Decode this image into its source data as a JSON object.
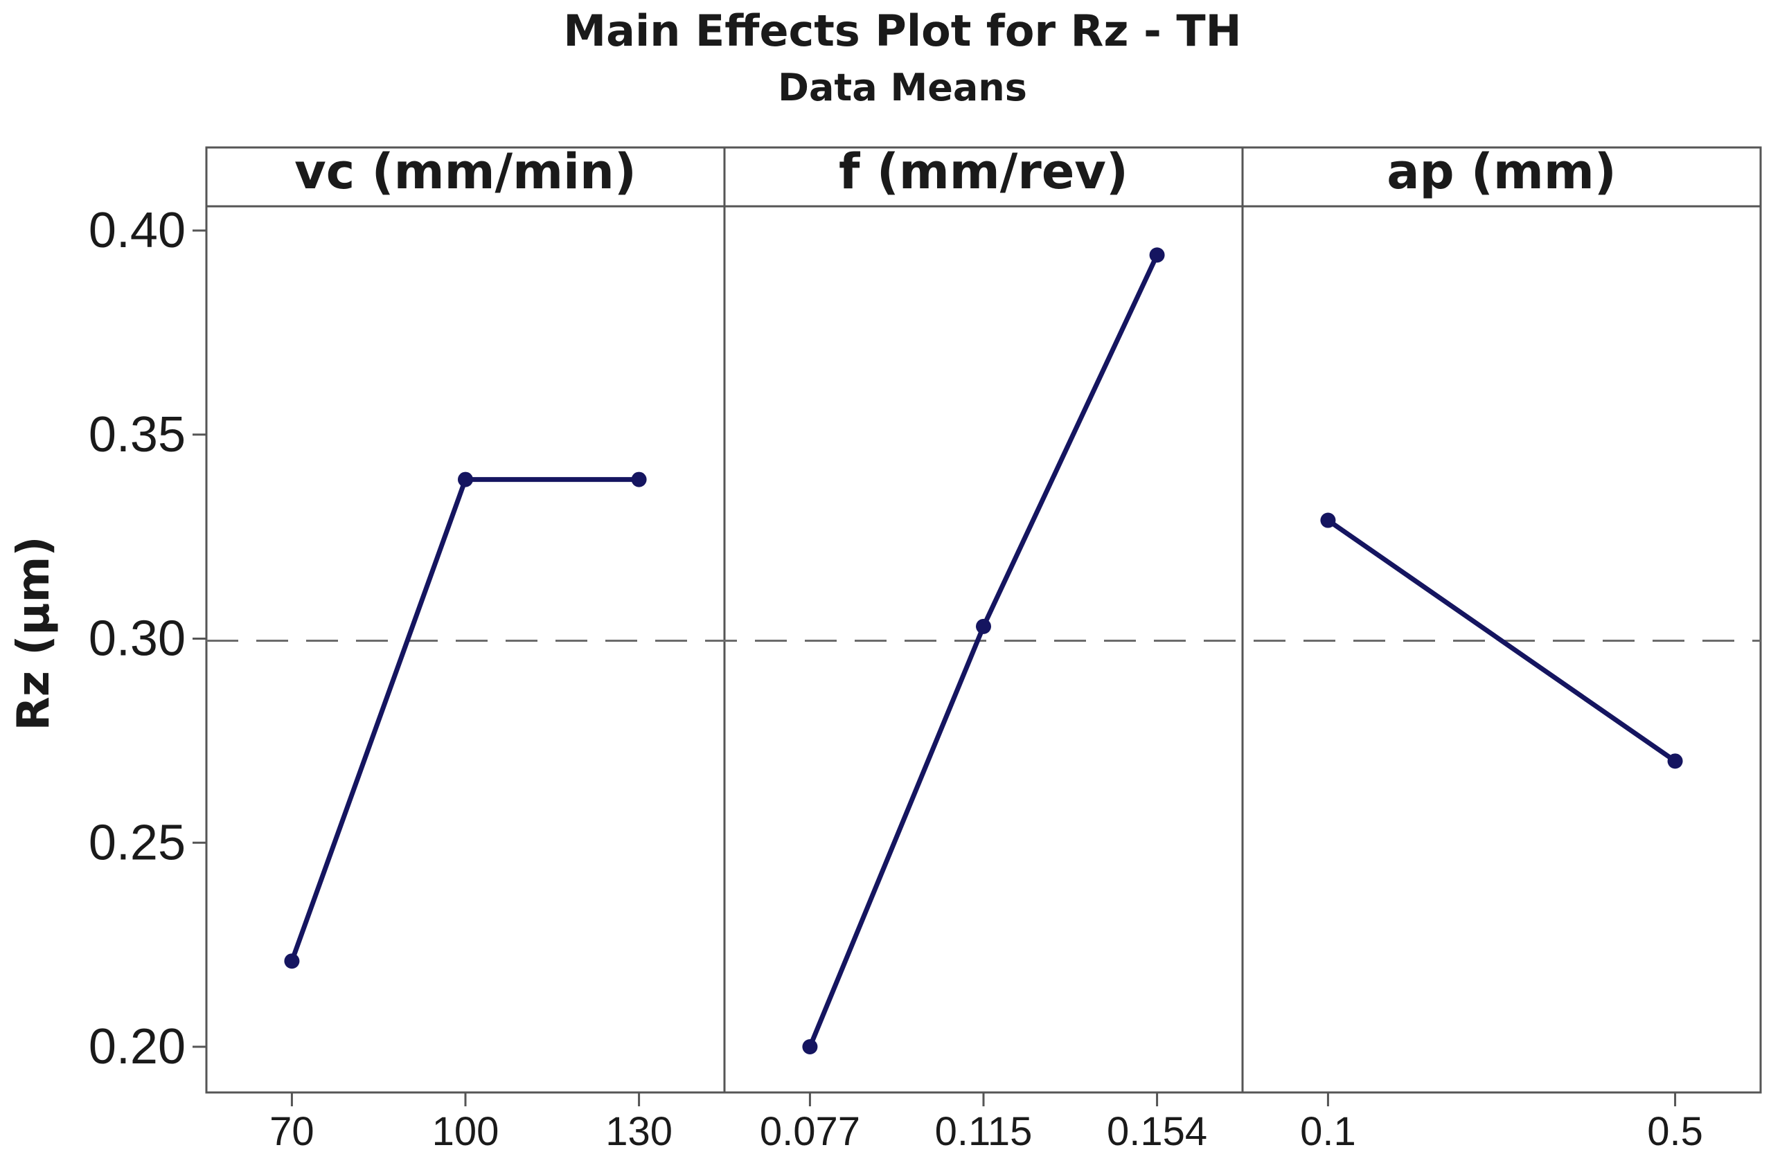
{
  "chart_data": {
    "type": "line",
    "title": "Main Effects Plot for Rz - TH",
    "subtitle": "Data Means",
    "ylabel": "Rz (µm)",
    "ylim": [
      0.19,
      0.41
    ],
    "yticks": [
      "0.20",
      "0.25",
      "0.30",
      "0.35",
      "0.40"
    ],
    "ytick_values": [
      0.2,
      0.25,
      0.3,
      0.35,
      0.4
    ],
    "reference_line": 0.2995,
    "grid": false,
    "line_color": "#151560",
    "frame_color": "#555555",
    "reference_color": "#6b6b6b",
    "panels": [
      {
        "name": "vc (mm/min)",
        "categories": [
          "70",
          "100",
          "130"
        ],
        "values": [
          0.221,
          0.339,
          0.339
        ]
      },
      {
        "name": "f  (mm/rev)",
        "categories": [
          "0.077",
          "0.115",
          "0.154"
        ],
        "values": [
          0.2,
          0.303,
          0.394
        ]
      },
      {
        "name": "ap (mm)",
        "categories": [
          "0.1",
          "0.5"
        ],
        "values": [
          0.329,
          0.27
        ]
      }
    ]
  }
}
